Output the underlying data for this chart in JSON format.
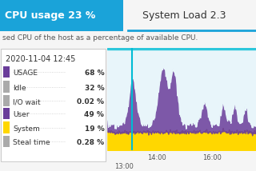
{
  "title_left": "CPU usage 23 %",
  "title_right": "System Load 2.3",
  "subtitle": "sed CPU of the host as a percentage of available CPU.",
  "tooltip_date": "2020-11-04 12:45",
  "tooltip_items": [
    [
      "USAGE",
      "68 %"
    ],
    [
      "Idle",
      "32 %"
    ],
    [
      "I/O wait",
      "0.02 %"
    ],
    [
      "User",
      "49 %"
    ],
    [
      "System",
      "19 %"
    ],
    [
      "Steal time",
      "0.28 %"
    ]
  ],
  "header_bg": "#1aa3d9",
  "header_text_color": "#ffffff",
  "tab_underline": "#1aa3d9",
  "chart_bg": "#e8f5fa",
  "purple_color": "#6a3d9a",
  "yellow_color": "#ffd700",
  "cyan_color": "#00bcd4",
  "x_labels": [
    "13:00",
    "14:00",
    "16:00"
  ],
  "tooltip_bg": "#ffffff",
  "tooltip_border": "#cccccc",
  "text_color": "#333333",
  "axis_label_color": "#555555"
}
